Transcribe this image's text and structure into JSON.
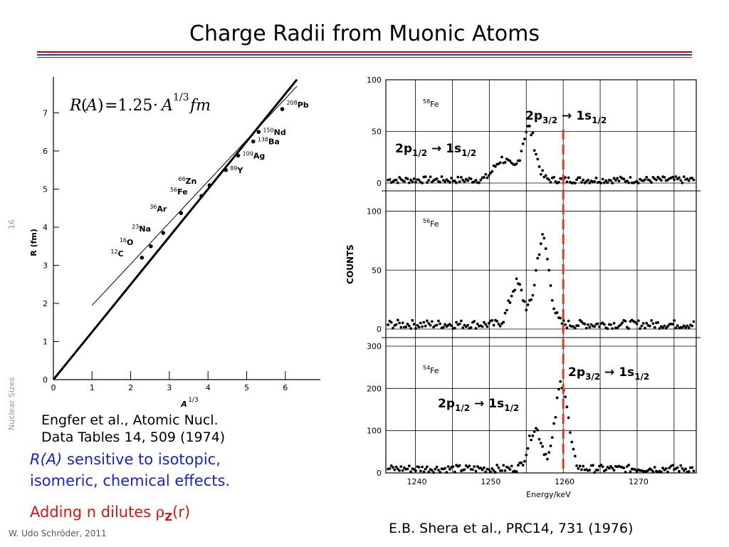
{
  "slide": {
    "title": "Charge Radii from Muonic Atoms",
    "page_number": "16",
    "section": "Nuclear Sizes",
    "author": "W. Udo Schröder, 2011",
    "rule_colors": [
      "#c00000",
      "#1f3fae"
    ]
  },
  "left_caption": {
    "line1": "Engfer et al., Atomic Nucl.",
    "line2": "Data Tables 14, 509 (1974)"
  },
  "notes": {
    "blue1_italic": "R(A)",
    "blue1_rest": " sensitive to isotopic,",
    "blue2": "isomeric, chemical effects.",
    "red_prefix": "Adding n dilutes ",
    "red_rho": "ρ",
    "red_sub": "Z",
    "red_suffix": "(r)"
  },
  "right_caption": "E.B. Shera et al., PRC14, 731 (1976)",
  "chart_data": [
    {
      "type": "scatter",
      "formula": {
        "R": "R",
        "A": "A",
        "eq": "=1.25",
        "dot": "·",
        "A2": "A",
        "exp": "1/3",
        "unit": "fm"
      },
      "xlabel": "A",
      "xlabel_exp": "1/3",
      "ylabel": "R (fm)",
      "xlim": [
        0,
        7
      ],
      "ylim": [
        0,
        8
      ],
      "xticks": [
        "0",
        "1",
        "2",
        "3",
        "4",
        "5",
        "6"
      ],
      "yticks": [
        "0",
        "1",
        "2",
        "3",
        "4",
        "5",
        "6",
        "7"
      ],
      "points": [
        {
          "mass": "12",
          "sym": "C",
          "x": 2.29,
          "y": 3.2
        },
        {
          "mass": "16",
          "sym": "O",
          "x": 2.52,
          "y": 3.5
        },
        {
          "mass": "23",
          "sym": "Na",
          "x": 2.84,
          "y": 3.85
        },
        {
          "mass": "36",
          "sym": "Ar",
          "x": 3.3,
          "y": 4.37
        },
        {
          "mass": "56",
          "sym": "Fe",
          "x": 3.83,
          "y": 4.82
        },
        {
          "mass": "66",
          "sym": "Zn",
          "x": 4.04,
          "y": 5.1
        },
        {
          "mass": "89",
          "sym": "Y",
          "x": 4.46,
          "y": 5.5
        },
        {
          "mass": "109",
          "sym": "Ag",
          "x": 4.78,
          "y": 5.88
        },
        {
          "mass": "138",
          "sym": "Ba",
          "x": 5.17,
          "y": 6.25
        },
        {
          "mass": "150",
          "sym": "Nd",
          "x": 5.31,
          "y": 6.5
        },
        {
          "mass": "208",
          "sym": "Pb",
          "x": 5.92,
          "y": 7.1
        }
      ],
      "lines": [
        {
          "style": "thick",
          "from": [
            0,
            0
          ],
          "to": [
            6.3,
            7.875
          ]
        },
        {
          "style": "thin",
          "from": [
            1.0,
            1.95
          ],
          "to": [
            6.3,
            7.7
          ]
        }
      ]
    },
    {
      "type": "scatter",
      "ylabel": "COUNTS",
      "xlabel": "Energy/keV",
      "xlim": [
        1236,
        1278
      ],
      "xticks": [
        "1240",
        "1250",
        "1260",
        "1270"
      ],
      "marker_energy": 1260,
      "marker_color": "#e03a1e",
      "panels": [
        {
          "isotope_mass": "58",
          "isotope_sym": "Fe",
          "ylim": [
            0,
            100
          ],
          "yticks": [
            "0",
            "50",
            "100"
          ],
          "peaks": [
            {
              "center": 1255.3,
              "height": 50,
              "width": 0.9
            },
            {
              "center": 1251.8,
              "height": 20,
              "width": 1.1
            }
          ],
          "background": 3,
          "labels": [
            {
              "main": "2p",
              "sub1": "3/2",
              "arrow": "→",
              "main2": "1s",
              "sub2": "1/2"
            },
            {
              "main": "2p",
              "sub1": "1/2",
              "arrow": "→",
              "main2": "1s",
              "sub2": "1/2"
            }
          ]
        },
        {
          "isotope_mass": "56",
          "isotope_sym": "Fe",
          "ylim": [
            0,
            110
          ],
          "yticks": [
            "0",
            "50",
            "100"
          ],
          "peaks": [
            {
              "center": 1257.2,
              "height": 72,
              "width": 0.9
            },
            {
              "center": 1253.7,
              "height": 34,
              "width": 0.9
            }
          ],
          "background": 4,
          "labels": []
        },
        {
          "isotope_mass": "54",
          "isotope_sym": "Fe",
          "ylim": [
            0,
            300
          ],
          "yticks": [
            "0",
            "100",
            "200",
            "300"
          ],
          "peaks": [
            {
              "center": 1259.8,
              "height": 205,
              "width": 0.85
            },
            {
              "center": 1256.2,
              "height": 95,
              "width": 0.9
            }
          ],
          "background": 10,
          "labels": [
            {
              "main": "2p",
              "sub1": "3/2",
              "arrow": "→",
              "main2": "1s",
              "sub2": "1/2"
            },
            {
              "main": "2p",
              "sub1": "1/2",
              "arrow": "→",
              "main2": "1s",
              "sub2": "1/2"
            }
          ]
        }
      ]
    }
  ]
}
